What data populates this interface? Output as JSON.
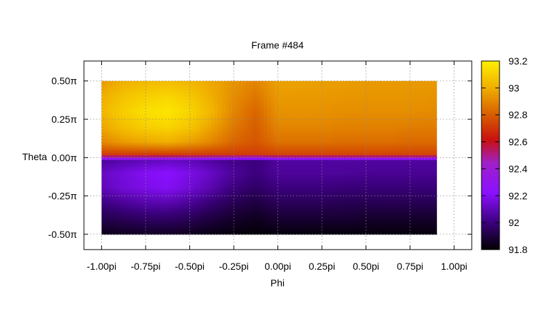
{
  "chart_data": {
    "type": "heatmap",
    "title": "Frame #484",
    "xlabel": "Phi",
    "ylabel": "Theta",
    "xlim": [
      -1.1,
      1.1
    ],
    "ylim": [
      -0.6,
      0.63
    ],
    "x_ticks": [
      {
        "value": -1.0,
        "label": "-1.00pi"
      },
      {
        "value": -0.75,
        "label": "-0.75pi"
      },
      {
        "value": -0.5,
        "label": "-0.50pi"
      },
      {
        "value": -0.25,
        "label": "-0.25pi"
      },
      {
        "value": 0.0,
        "label": "0.00pi"
      },
      {
        "value": 0.25,
        "label": "0.25pi"
      },
      {
        "value": 0.5,
        "label": "0.50pi"
      },
      {
        "value": 0.75,
        "label": "0.75pi"
      },
      {
        "value": 1.0,
        "label": "1.00pi"
      }
    ],
    "y_ticks": [
      {
        "value": 0.5,
        "label": "0.50π"
      },
      {
        "value": 0.25,
        "label": "0.25π"
      },
      {
        "value": 0.0,
        "label": "0.00π"
      },
      {
        "value": -0.25,
        "label": "-0.25π"
      },
      {
        "value": -0.5,
        "label": "-0.50π"
      }
    ],
    "x_range_data": [
      -1.0,
      0.9
    ],
    "y_range_data": [
      -0.5,
      0.5
    ],
    "x_samples": [
      -1.0,
      -0.875,
      -0.75,
      -0.625,
      -0.5,
      -0.375,
      -0.25,
      -0.125,
      0.0,
      0.125,
      0.25,
      0.375,
      0.5,
      0.625,
      0.75,
      0.9
    ],
    "y_samples": [
      0.5,
      0.4,
      0.3,
      0.2,
      0.1,
      0.02,
      -0.02,
      -0.1,
      -0.2,
      -0.3,
      -0.4,
      -0.5
    ],
    "values": [
      [
        92.95,
        93.0,
        93.03,
        93.04,
        93.02,
        92.98,
        92.94,
        92.9,
        92.97,
        92.97,
        92.96,
        92.96,
        92.95,
        92.95,
        92.95,
        92.95
      ],
      [
        93.0,
        93.06,
        93.1,
        93.12,
        93.08,
        93.0,
        92.92,
        92.86,
        92.95,
        92.95,
        92.95,
        92.94,
        92.94,
        92.94,
        92.94,
        92.93
      ],
      [
        93.02,
        93.1,
        93.15,
        93.17,
        93.12,
        93.02,
        92.9,
        92.82,
        92.93,
        92.93,
        92.93,
        92.92,
        92.92,
        92.92,
        92.92,
        92.91
      ],
      [
        92.98,
        93.05,
        93.1,
        93.12,
        93.07,
        92.97,
        92.87,
        92.8,
        92.9,
        92.9,
        92.9,
        92.89,
        92.89,
        92.89,
        92.88,
        92.88
      ],
      [
        92.9,
        92.95,
        92.98,
        93.0,
        92.96,
        92.9,
        92.82,
        92.78,
        92.85,
        92.85,
        92.85,
        92.84,
        92.84,
        92.84,
        92.83,
        92.83
      ],
      [
        92.72,
        92.72,
        92.72,
        92.72,
        92.72,
        92.72,
        92.72,
        92.72,
        92.74,
        92.74,
        92.74,
        92.74,
        92.74,
        92.74,
        92.74,
        92.74
      ],
      [
        92.05,
        92.08,
        92.1,
        92.12,
        92.1,
        92.06,
        92.02,
        92.0,
        92.06,
        92.06,
        92.06,
        92.06,
        92.06,
        92.06,
        92.06,
        92.06
      ],
      [
        92.12,
        92.16,
        92.2,
        92.22,
        92.18,
        92.12,
        92.05,
        92.0,
        92.05,
        92.05,
        92.05,
        92.05,
        92.04,
        92.04,
        92.04,
        92.04
      ],
      [
        92.1,
        92.15,
        92.18,
        92.2,
        92.15,
        92.08,
        92.0,
        91.96,
        92.0,
        92.0,
        92.0,
        91.99,
        91.99,
        91.99,
        91.99,
        91.99
      ],
      [
        92.0,
        92.04,
        92.07,
        92.08,
        92.04,
        91.98,
        91.93,
        91.9,
        91.94,
        91.94,
        91.94,
        91.93,
        91.93,
        91.93,
        91.93,
        91.93
      ],
      [
        91.92,
        91.94,
        91.96,
        91.96,
        91.94,
        91.9,
        91.87,
        91.85,
        91.88,
        91.88,
        91.88,
        91.88,
        91.87,
        91.87,
        91.87,
        91.87
      ],
      [
        91.84,
        91.85,
        91.86,
        91.86,
        91.85,
        91.83,
        91.82,
        91.81,
        91.82,
        91.82,
        91.82,
        91.82,
        91.82,
        91.82,
        91.82,
        91.82
      ]
    ],
    "colorbar": {
      "range": [
        91.8,
        93.2
      ],
      "ticks": [
        {
          "value": 93.2,
          "label": "93.2"
        },
        {
          "value": 93.0,
          "label": "93"
        },
        {
          "value": 92.8,
          "label": "92.8"
        },
        {
          "value": 92.6,
          "label": "92.6"
        },
        {
          "value": 92.4,
          "label": "92.4"
        },
        {
          "value": 92.2,
          "label": "92.2"
        },
        {
          "value": 92.0,
          "label": "92"
        },
        {
          "value": 91.8,
          "label": "91.8"
        }
      ],
      "palette": "black-purple-red-yellow"
    },
    "grid": true
  }
}
